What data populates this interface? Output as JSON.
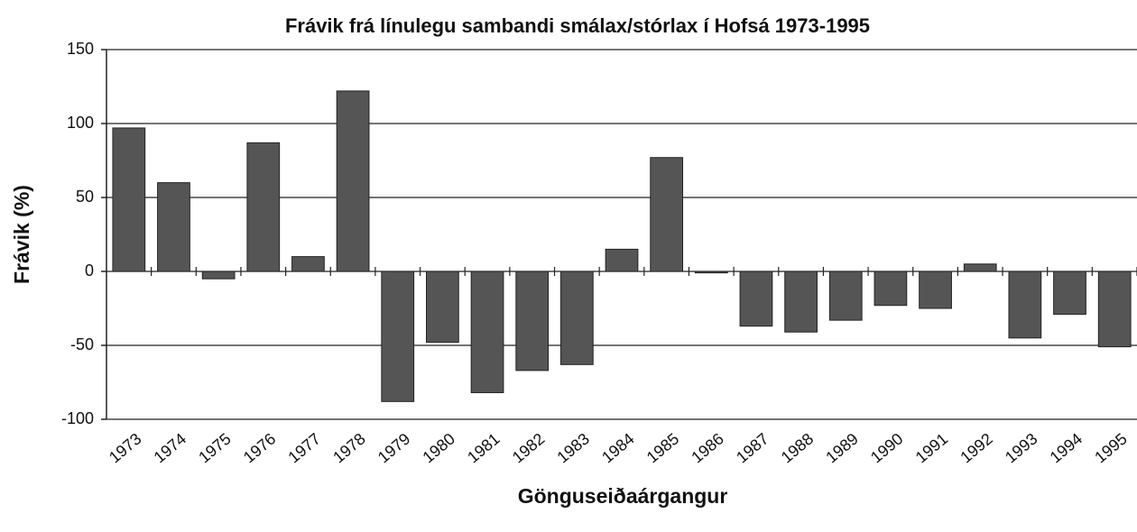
{
  "chart_data": {
    "type": "bar",
    "title": "Frávik frá línulegu sambandi smálax/stórlax í Hofsá 1973-1995",
    "x_label": "Gönguseiðaárgangur",
    "y_label": "Frávik (%)",
    "categories": [
      "1973",
      "1974",
      "1975",
      "1976",
      "1977",
      "1978",
      "1979",
      "1980",
      "1981",
      "1982",
      "1983",
      "1984",
      "1985",
      "1986",
      "1987",
      "1988",
      "1989",
      "1990",
      "1991",
      "1992",
      "1993",
      "1994",
      "1995"
    ],
    "values": [
      97,
      60,
      -5,
      87,
      10,
      122,
      -88,
      -48,
      -82,
      -67,
      -63,
      15,
      77,
      -1,
      -37,
      -41,
      -33,
      -23,
      -25,
      5,
      -45,
      -29,
      -51
    ],
    "color": "#555555",
    "ylim": [
      -100,
      150
    ],
    "yticks": [
      -100,
      -50,
      0,
      50,
      100,
      150
    ],
    "grid": true
  }
}
